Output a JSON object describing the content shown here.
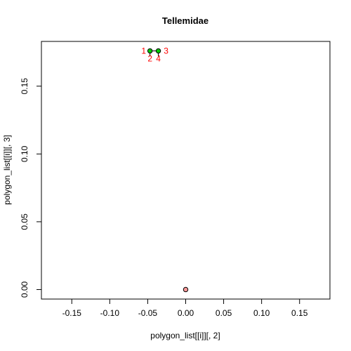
{
  "chart_data": {
    "type": "scatter",
    "title": "Tellemidae",
    "xlabel": "polygon_list[[i]][, 2]",
    "ylabel": "polygon_list[[i]][, 3]",
    "xlim": [
      -0.19,
      0.19
    ],
    "ylim": [
      -0.007,
      0.183
    ],
    "xticks": [
      -0.15,
      -0.1,
      -0.05,
      0.0,
      0.05,
      0.1,
      0.15
    ],
    "xtick_labels": [
      "-0.15",
      "-0.10",
      "-0.05",
      "0.00",
      "0.05",
      "0.10",
      "0.15"
    ],
    "yticks": [
      0.0,
      0.05,
      0.1,
      0.15
    ],
    "ytick_labels": [
      "0.00",
      "0.05",
      "0.10",
      "0.15"
    ],
    "grid": false,
    "points": [
      {
        "x": -0.047,
        "y": 0.176,
        "color": "#00cc00"
      },
      {
        "x": -0.036,
        "y": 0.176,
        "color": "#00cc00"
      },
      {
        "x": 0.0,
        "y": 0.0,
        "color": "#ff9999"
      }
    ],
    "segments": [
      {
        "x1": -0.047,
        "y1": 0.176,
        "x2": -0.036,
        "y2": 0.176
      },
      {
        "x1": -0.047,
        "y1": 0.176,
        "x2": -0.047,
        "y2": 0.172
      },
      {
        "x1": -0.036,
        "y1": 0.176,
        "x2": -0.036,
        "y2": 0.172
      }
    ],
    "annotations": [
      {
        "text": "1",
        "x": -0.047,
        "y": 0.176,
        "anchor": "left"
      },
      {
        "text": "3",
        "x": -0.036,
        "y": 0.176,
        "anchor": "right"
      },
      {
        "text": "2",
        "x": -0.047,
        "y": 0.176,
        "anchor": "below"
      },
      {
        "text": "4",
        "x": -0.036,
        "y": 0.176,
        "anchor": "below"
      }
    ]
  }
}
